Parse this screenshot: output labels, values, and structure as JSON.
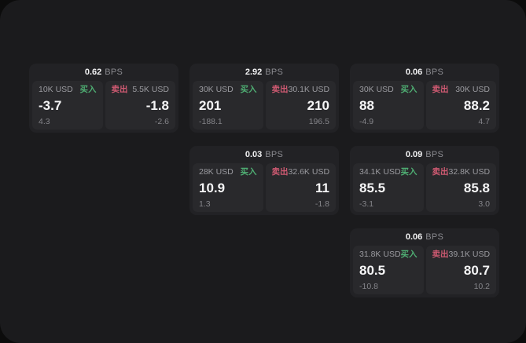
{
  "labels": {
    "bps": "BPS",
    "buy": "买入",
    "sell": "卖出"
  },
  "colors": {
    "window_bg": "#1b1b1d",
    "card_bg": "#222225",
    "panel_bg": "#29292c",
    "buy_green": "#4fae73",
    "sell_red": "#cf5a72",
    "price_white": "#f5f5f6",
    "muted_gray": "#8b8b90"
  },
  "cards": [
    {
      "bps": "0.62",
      "buy": {
        "amount": "10K USD",
        "price": "-3.7",
        "change": "4.3"
      },
      "sell": {
        "amount": "5.5K USD",
        "price": "-1.8",
        "change": "-2.6"
      }
    },
    {
      "bps": "2.92",
      "buy": {
        "amount": "30K USD",
        "price": "201",
        "change": "-188.1"
      },
      "sell": {
        "amount": "30.1K USD",
        "price": "210",
        "change": "196.5"
      }
    },
    {
      "bps": "0.06",
      "buy": {
        "amount": "30K USD",
        "price": "88",
        "change": "-4.9"
      },
      "sell": {
        "amount": "30K USD",
        "price": "88.2",
        "change": "4.7"
      }
    },
    {
      "bps": "0.03",
      "buy": {
        "amount": "28K USD",
        "price": "10.9",
        "change": "1.3"
      },
      "sell": {
        "amount": "32.6K USD",
        "price": "11",
        "change": "-1.8"
      }
    },
    {
      "bps": "0.09",
      "buy": {
        "amount": "34.1K USD",
        "price": "85.5",
        "change": "-3.1"
      },
      "sell": {
        "amount": "32.8K USD",
        "price": "85.8",
        "change": "3.0"
      }
    },
    {
      "bps": "0.06",
      "buy": {
        "amount": "31.8K USD",
        "price": "80.5",
        "change": "-10.8"
      },
      "sell": {
        "amount": "39.1K USD",
        "price": "80.7",
        "change": "10.2"
      }
    }
  ]
}
